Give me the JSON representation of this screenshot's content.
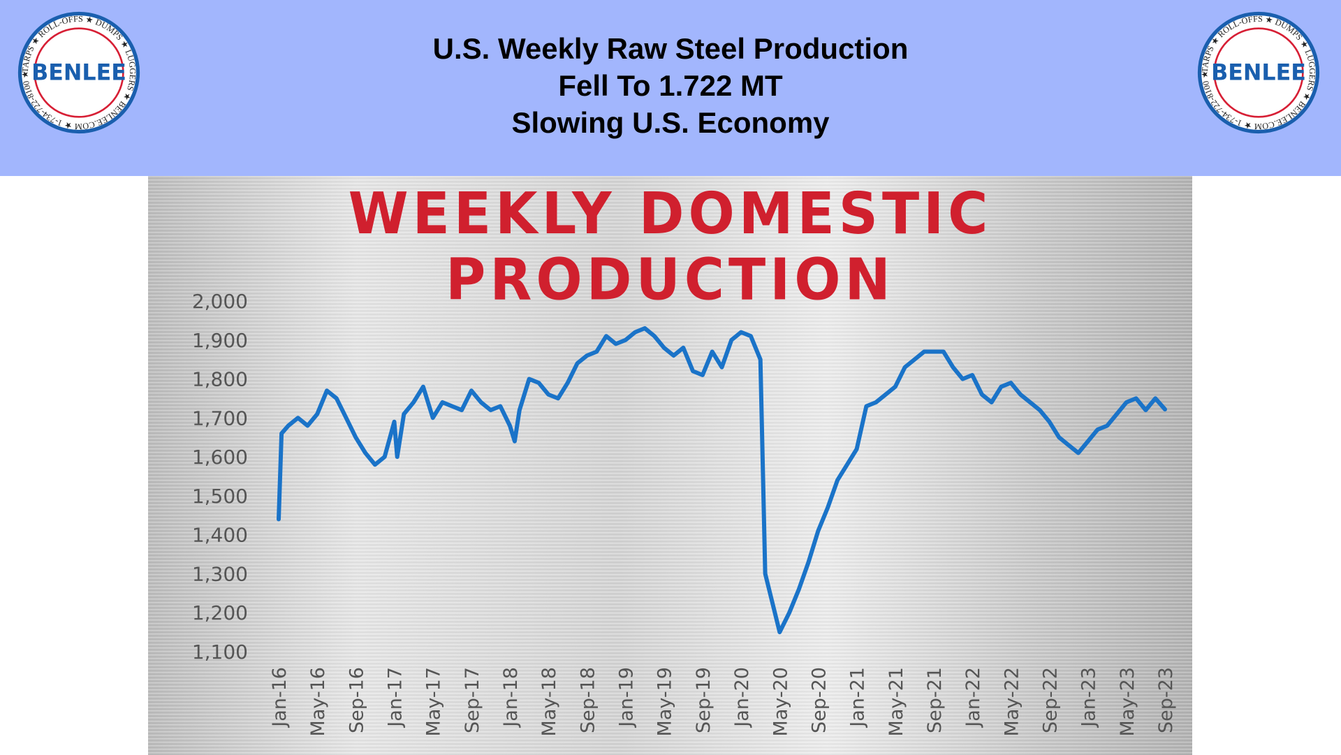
{
  "header": {
    "line1": "U.S. Weekly Raw Steel Production",
    "line2": "Fell To 1.722 MT",
    "line3": "Slowing U.S. Economy"
  },
  "logo": {
    "name": "BENLEE",
    "ring_text": "TARPS ★ ROLL-OFFS ★ DUMPS ★ LUGGERS ★ BENLEE.COM ★ 1-734-722-8100 ★ PARTS ★",
    "colors": {
      "red": "#d71f35",
      "blue": "#1a5fae"
    }
  },
  "chart_data": {
    "type": "line",
    "title": "WEEKLY DOMESTIC PRODUCTION",
    "xlabel": "",
    "ylabel": "",
    "ylim": [
      1100,
      2000
    ],
    "yticks": [
      "2,000",
      "1,900",
      "1,800",
      "1,700",
      "1,600",
      "1,500",
      "1,400",
      "1,300",
      "1,200",
      "1,100"
    ],
    "ytick_values": [
      2000,
      1900,
      1800,
      1700,
      1600,
      1500,
      1400,
      1300,
      1200,
      1100
    ],
    "xticks": [
      "Jan-16",
      "May-16",
      "Sep-16",
      "Jan-17",
      "May-17",
      "Sep-17",
      "Jan-18",
      "May-18",
      "Sep-18",
      "Jan-19",
      "May-19",
      "Sep-19",
      "Jan-20",
      "May-20",
      "Sep-20",
      "Jan-21",
      "May-21",
      "Sep-21",
      "Jan-22",
      "May-22",
      "Sep-22",
      "Jan-23",
      "May-23",
      "Sep-23"
    ],
    "x_unit": "months since Jan-16",
    "xlim": [
      0,
      92
    ],
    "grid": false,
    "series": [
      {
        "name": "Weekly domestic production",
        "color": "#1a73c8",
        "x": [
          0,
          0.3,
          1,
          2,
          3,
          4,
          5,
          6,
          7,
          8,
          9,
          10,
          11,
          12,
          12.3,
          13,
          14,
          15,
          16,
          17,
          18,
          19,
          20,
          21,
          22,
          23,
          24,
          24.5,
          25,
          26,
          27,
          28,
          29,
          30,
          31,
          32,
          33,
          34,
          35,
          36,
          37,
          38,
          39,
          40,
          41,
          42,
          43,
          44,
          45,
          46,
          47,
          48,
          49,
          50,
          50.5,
          51,
          52,
          53,
          54,
          55,
          56,
          57,
          58,
          59,
          60,
          61,
          62,
          63,
          64,
          65,
          66,
          67,
          68,
          69,
          70,
          71,
          72,
          73,
          74,
          75,
          76,
          77,
          78,
          79,
          80,
          81,
          82,
          83,
          84,
          85,
          86,
          87,
          88,
          89,
          90,
          91,
          92
        ],
        "values": [
          1440,
          1660,
          1680,
          1700,
          1680,
          1710,
          1770,
          1750,
          1700,
          1650,
          1610,
          1580,
          1600,
          1690,
          1600,
          1710,
          1740,
          1780,
          1700,
          1740,
          1730,
          1720,
          1770,
          1740,
          1720,
          1730,
          1680,
          1640,
          1720,
          1800,
          1790,
          1760,
          1750,
          1790,
          1840,
          1860,
          1870,
          1910,
          1890,
          1900,
          1920,
          1930,
          1910,
          1880,
          1860,
          1880,
          1820,
          1810,
          1870,
          1830,
          1900,
          1920,
          1910,
          1850,
          1300,
          1250,
          1150,
          1200,
          1260,
          1330,
          1410,
          1470,
          1540,
          1580,
          1620,
          1730,
          1740,
          1760,
          1780,
          1830,
          1850,
          1870,
          1870,
          1870,
          1830,
          1800,
          1810,
          1760,
          1740,
          1780,
          1790,
          1760,
          1740,
          1720,
          1690,
          1650,
          1630,
          1610,
          1640,
          1670,
          1680,
          1710,
          1740,
          1750,
          1720,
          1750,
          1722
        ]
      }
    ]
  }
}
